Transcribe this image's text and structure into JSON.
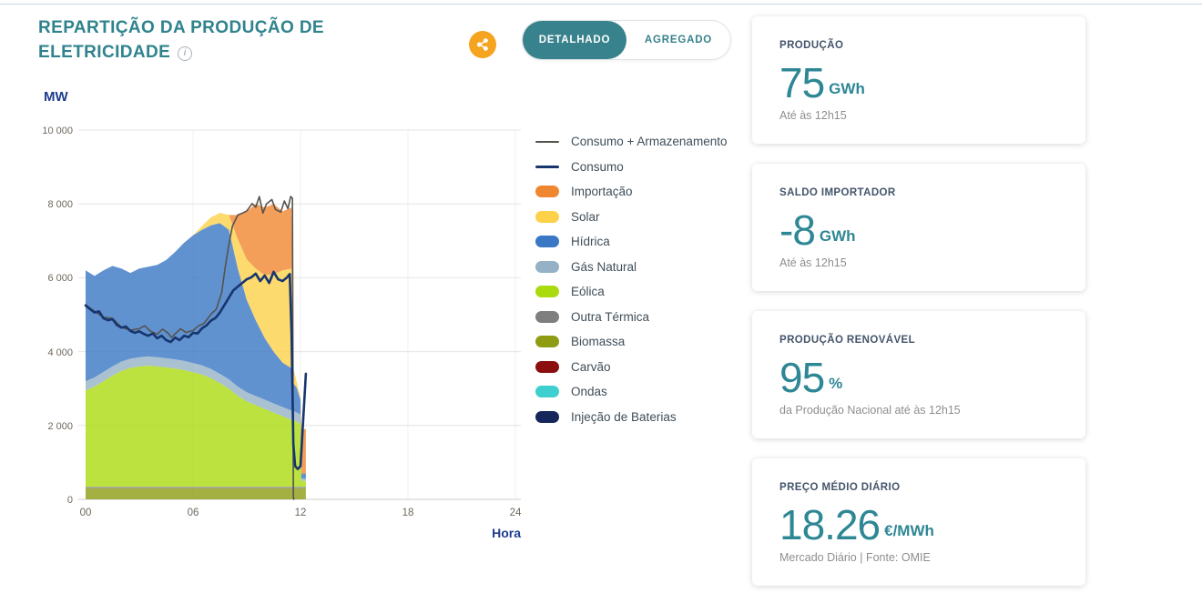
{
  "header": {
    "title_line1": "REPARTIÇÃO DA PRODUÇÃO DE",
    "title_line2": "ELETRICIDADE",
    "toggle": {
      "options": [
        "DETALHADO",
        "AGREGADO"
      ],
      "selected": "DETALHADO"
    }
  },
  "icons": {
    "info": "i"
  },
  "chart": {
    "y_axis_unit": "MW",
    "x_axis_label": "Hora",
    "y_ticks": [
      "10 000",
      "8 000",
      "6 000",
      "4 000",
      "2 000",
      "0"
    ],
    "x_ticks": [
      "00",
      "06",
      "12",
      "18",
      "24"
    ]
  },
  "chart_data": {
    "type": "area",
    "stacked": true,
    "x_label": "Hora",
    "y_label": "MW",
    "y_range": [
      0,
      10000
    ],
    "y_tick_step": 2000,
    "x_range": [
      0,
      24
    ],
    "data_until": "12h15",
    "x_hours": [
      0,
      0.5,
      1,
      1.5,
      2,
      2.5,
      3,
      3.5,
      4,
      4.5,
      5,
      5.5,
      6,
      6.5,
      7,
      7.5,
      8,
      8.5,
      9,
      9.5,
      10,
      10.5,
      11,
      11.5,
      11.6,
      11.8,
      12,
      12.05,
      12.3
    ],
    "series": [
      {
        "name": "Biomassa",
        "color": "#8d9c13",
        "values": [
          300,
          300,
          300,
          300,
          300,
          300,
          300,
          300,
          300,
          300,
          300,
          300,
          300,
          300,
          300,
          300,
          300,
          300,
          300,
          300,
          300,
          300,
          300,
          300,
          300,
          300,
          300,
          300,
          300
        ]
      },
      {
        "name": "Outra Térmica",
        "color": "#7f7f7f",
        "values": [
          40,
          40,
          40,
          40,
          40,
          40,
          40,
          40,
          40,
          40,
          40,
          40,
          40,
          40,
          40,
          40,
          40,
          40,
          40,
          40,
          40,
          40,
          40,
          40,
          40,
          40,
          40,
          40,
          40
        ]
      },
      {
        "name": "Eólica",
        "color": "#aadb0f",
        "values": [
          2610,
          2710,
          2860,
          3010,
          3140,
          3220,
          3260,
          3280,
          3260,
          3230,
          3200,
          3160,
          3100,
          3040,
          2940,
          2810,
          2660,
          2460,
          2310,
          2210,
          2110,
          2010,
          1910,
          1810,
          1800,
          1760,
          1710,
          160,
          160
        ]
      },
      {
        "name": "Gás Natural",
        "color": "#94b1c5",
        "values": [
          250,
          250,
          250,
          250,
          250,
          250,
          250,
          250,
          250,
          250,
          250,
          250,
          250,
          250,
          250,
          250,
          250,
          250,
          250,
          250,
          250,
          250,
          250,
          250,
          250,
          250,
          250,
          60,
          60
        ]
      },
      {
        "name": "Hídrica",
        "color": "#3a77c4",
        "values": [
          3000,
          2750,
          2750,
          2720,
          2520,
          2320,
          2400,
          2430,
          2500,
          2660,
          2910,
          3200,
          3460,
          3670,
          3890,
          4080,
          4050,
          3200,
          2500,
          2050,
          1670,
          1400,
          1200,
          1150,
          760,
          660,
          400,
          140,
          140
        ]
      },
      {
        "name": "Solar",
        "color": "#fdd14a",
        "values": [
          0,
          0,
          0,
          0,
          0,
          0,
          0,
          0,
          0,
          0,
          0,
          0,
          0,
          100,
          220,
          280,
          400,
          800,
          1100,
          1400,
          1700,
          2100,
          2500,
          2700,
          400,
          150,
          50,
          0,
          0
        ]
      },
      {
        "name": "Importação",
        "color": "#f0862f",
        "values": [
          0,
          0,
          0,
          0,
          0,
          0,
          0,
          0,
          0,
          0,
          0,
          0,
          0,
          0,
          0,
          0,
          0,
          650,
          1300,
          1750,
          1830,
          1900,
          1600,
          1650,
          0,
          0,
          0,
          1200,
          1200
        ]
      },
      {
        "name": "Carvão",
        "color": "#8c0f0f",
        "values": [
          0,
          0,
          0,
          0,
          0,
          0,
          0,
          0,
          0,
          0,
          0,
          0,
          0,
          0,
          0,
          0,
          0,
          0,
          0,
          0,
          0,
          0,
          0,
          0,
          0,
          0,
          0,
          0,
          0
        ]
      },
      {
        "name": "Ondas",
        "color": "#3fcfcf",
        "values": [
          0,
          0,
          0,
          0,
          0,
          0,
          0,
          0,
          0,
          0,
          0,
          0,
          0,
          0,
          0,
          0,
          0,
          0,
          0,
          0,
          0,
          0,
          0,
          0,
          0,
          0,
          0,
          0,
          0
        ]
      },
      {
        "name": "Injeção de Baterias",
        "color": "#15275a",
        "values": [
          0,
          0,
          0,
          0,
          0,
          0,
          0,
          0,
          0,
          0,
          0,
          0,
          0,
          0,
          0,
          0,
          0,
          0,
          0,
          0,
          0,
          0,
          0,
          0,
          0,
          0,
          0,
          0,
          0
        ]
      }
    ],
    "lines": [
      {
        "name": "Consumo + Armazenamento",
        "color": "#55534e",
        "width": 1.6,
        "points": [
          [
            0,
            5270
          ],
          [
            0.5,
            5090
          ],
          [
            1,
            4930
          ],
          [
            1.5,
            4900
          ],
          [
            2,
            4660
          ],
          [
            2.5,
            4580
          ],
          [
            3,
            4620
          ],
          [
            3.3,
            4700
          ],
          [
            3.6,
            4560
          ],
          [
            4,
            4470
          ],
          [
            4.3,
            4610
          ],
          [
            4.6,
            4500
          ],
          [
            4.8,
            4380
          ],
          [
            5,
            4480
          ],
          [
            5.3,
            4620
          ],
          [
            5.6,
            4520
          ],
          [
            6,
            4570
          ],
          [
            6.3,
            4700
          ],
          [
            6.6,
            4760
          ],
          [
            7,
            5010
          ],
          [
            7.3,
            5150
          ],
          [
            7.6,
            5600
          ],
          [
            7.8,
            6300
          ],
          [
            8,
            6900
          ],
          [
            8.2,
            7400
          ],
          [
            8.5,
            7700
          ],
          [
            8.8,
            7760
          ],
          [
            9,
            7810
          ],
          [
            9.3,
            8010
          ],
          [
            9.5,
            7910
          ],
          [
            9.7,
            8200
          ],
          [
            9.9,
            7750
          ],
          [
            10.1,
            8000
          ],
          [
            10.4,
            8120
          ],
          [
            10.6,
            7850
          ],
          [
            10.9,
            7780
          ],
          [
            11.1,
            8080
          ],
          [
            11.3,
            7870
          ],
          [
            11.45,
            8200
          ],
          [
            11.55,
            8150
          ],
          [
            11.6,
            100
          ],
          [
            11.62,
            0
          ]
        ]
      },
      {
        "name": "Consumo",
        "color": "#17356e",
        "width": 2.6,
        "points": [
          [
            0,
            5250
          ],
          [
            0.25,
            5150
          ],
          [
            0.5,
            5060
          ],
          [
            0.75,
            5090
          ],
          [
            1,
            4900
          ],
          [
            1.25,
            4850
          ],
          [
            1.5,
            4880
          ],
          [
            1.75,
            4720
          ],
          [
            2,
            4650
          ],
          [
            2.25,
            4680
          ],
          [
            2.5,
            4560
          ],
          [
            2.75,
            4510
          ],
          [
            3,
            4550
          ],
          [
            3.25,
            4480
          ],
          [
            3.5,
            4430
          ],
          [
            3.75,
            4490
          ],
          [
            4,
            4360
          ],
          [
            4.25,
            4430
          ],
          [
            4.5,
            4310
          ],
          [
            4.75,
            4260
          ],
          [
            5,
            4380
          ],
          [
            5.25,
            4310
          ],
          [
            5.5,
            4430
          ],
          [
            5.75,
            4390
          ],
          [
            6,
            4510
          ],
          [
            6.25,
            4490
          ],
          [
            6.5,
            4630
          ],
          [
            6.75,
            4710
          ],
          [
            7,
            4840
          ],
          [
            7.25,
            4910
          ],
          [
            7.5,
            5060
          ],
          [
            7.75,
            5260
          ],
          [
            8,
            5460
          ],
          [
            8.25,
            5660
          ],
          [
            8.5,
            5760
          ],
          [
            8.75,
            5860
          ],
          [
            9,
            5960
          ],
          [
            9.25,
            6010
          ],
          [
            9.5,
            6110
          ],
          [
            9.75,
            5910
          ],
          [
            10,
            6060
          ],
          [
            10.25,
            5860
          ],
          [
            10.5,
            6160
          ],
          [
            10.75,
            5960
          ],
          [
            11,
            5910
          ],
          [
            11.25,
            6010
          ],
          [
            11.4,
            6100
          ],
          [
            11.5,
            4500
          ],
          [
            11.6,
            1500
          ],
          [
            11.7,
            900
          ],
          [
            11.85,
            820
          ],
          [
            12,
            900
          ],
          [
            12.3,
            3400
          ]
        ]
      }
    ]
  },
  "legend": [
    {
      "label": "Consumo + Armazenamento",
      "color": "#55534e",
      "swatch": "line"
    },
    {
      "label": "Consumo",
      "color": "#17356e",
      "swatch": "line"
    },
    {
      "label": "Importação",
      "color": "#f0862f",
      "swatch": "pill"
    },
    {
      "label": "Solar",
      "color": "#fdd14a",
      "swatch": "pill"
    },
    {
      "label": "Hídrica",
      "color": "#3a77c4",
      "swatch": "pill"
    },
    {
      "label": "Gás Natural",
      "color": "#94b1c5",
      "swatch": "pill"
    },
    {
      "label": "Eólica",
      "color": "#aadb0f",
      "swatch": "pill"
    },
    {
      "label": "Outra Térmica",
      "color": "#7f7f7f",
      "swatch": "pill"
    },
    {
      "label": "Biomassa",
      "color": "#8d9c13",
      "swatch": "pill"
    },
    {
      "label": "Carvão",
      "color": "#8c0f0f",
      "swatch": "pill"
    },
    {
      "label": "Ondas",
      "color": "#3fcfcf",
      "swatch": "pill"
    },
    {
      "label": "Injeção de Baterias",
      "color": "#15275a",
      "swatch": "pill"
    }
  ],
  "cards": [
    {
      "title": "PRODUÇÃO",
      "value": "75",
      "unit": "GWh",
      "subtitle": "Até às 12h15"
    },
    {
      "title": "SALDO IMPORTADOR",
      "value": "-8",
      "unit": "GWh",
      "subtitle": "Até às 12h15"
    },
    {
      "title": "PRODUÇÃO RENOVÁVEL",
      "value": "95",
      "unit": "%",
      "subtitle": "da Produção Nacional até às 12h15"
    },
    {
      "title": "PREÇO MÉDIO DIÁRIO",
      "value": "18.26",
      "unit": "€/MWh",
      "subtitle": "Mercado Diário | Fonte: OMIE"
    }
  ],
  "colors": {
    "accent_teal": "#2f838c",
    "number_teal": "#2e8794",
    "axis_navy": "#1e3d8f",
    "share_orange": "#f5a41f",
    "card_title": "#44546b",
    "muted_text": "#8e8e8e",
    "axis_text": "#6f675d",
    "grid": "#e4e4e4"
  }
}
